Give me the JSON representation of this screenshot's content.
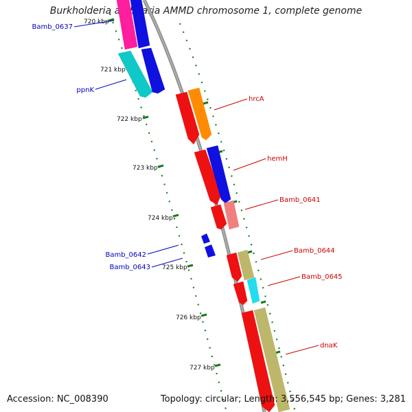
{
  "title": "Burkholderia ambifaria AMMD chromosome 1, complete genome",
  "footer": {
    "accession": "Accession: NC_008390",
    "summary": "Topology: circular; Length: 3,556,545 bp; Genes: 3,281"
  },
  "colors": {
    "backbone": "#8c8c8c",
    "tick": "#1a7a1a",
    "reverse_label": "#0000bb",
    "forward_label": "#cc0000"
  },
  "kbp_labels": [
    "720 kbp",
    "721 kbp",
    "722 kbp",
    "723 kbp",
    "724 kbp",
    "725 kbp",
    "726 kbp",
    "727 kbp"
  ],
  "genes": [
    {
      "id": "g_topA",
      "label": "",
      "color": "#ff1e9e",
      "strand": "reverse"
    },
    {
      "id": "g_topB",
      "label": "",
      "color": "#1010e0",
      "strand": "reverse"
    },
    {
      "id": "g_ppnK_cyan",
      "label": "",
      "color": "#10c8c8",
      "strand": "reverse"
    },
    {
      "id": "g_ppnK_blue",
      "label": "",
      "color": "#1010e0",
      "strand": "reverse"
    },
    {
      "id": "g_hrcA_red",
      "label": "",
      "color": "#ee1111",
      "strand": "forward"
    },
    {
      "id": "g_hrcA_orange",
      "label": "",
      "color": "#ff8c00",
      "strand": "forward"
    },
    {
      "id": "g_hemH_red",
      "label": "",
      "color": "#ee1111",
      "strand": "forward"
    },
    {
      "id": "g_hemH_blue",
      "label": "",
      "color": "#1010e0",
      "strand": "forward"
    },
    {
      "id": "g_0641_red",
      "label": "",
      "color": "#ee1111",
      "strand": "forward"
    },
    {
      "id": "g_0641_pink",
      "label": "",
      "color": "#f08080",
      "strand": "forward"
    },
    {
      "id": "g_0644_red",
      "label": "",
      "color": "#ee1111",
      "strand": "forward"
    },
    {
      "id": "g_0644_khaki",
      "label": "",
      "color": "#bdb76b",
      "strand": "forward"
    },
    {
      "id": "g_0645_red",
      "label": "",
      "color": "#ee1111",
      "strand": "forward"
    },
    {
      "id": "g_0645_cyan",
      "label": "",
      "color": "#22ddee",
      "strand": "forward"
    },
    {
      "id": "g_dnaK_red",
      "label": "",
      "color": "#ee1111",
      "strand": "forward"
    },
    {
      "id": "g_dnaK_khaki",
      "label": "",
      "color": "#bdb76b",
      "strand": "forward"
    }
  ],
  "labels": {
    "reverse": [
      "Bamb_0637",
      "ppnK",
      "Bamb_0642",
      "Bamb_0643"
    ],
    "forward": [
      "hrcA",
      "hemH",
      "Bamb_0641",
      "Bamb_0644",
      "Bamb_0645",
      "dnaK"
    ]
  }
}
